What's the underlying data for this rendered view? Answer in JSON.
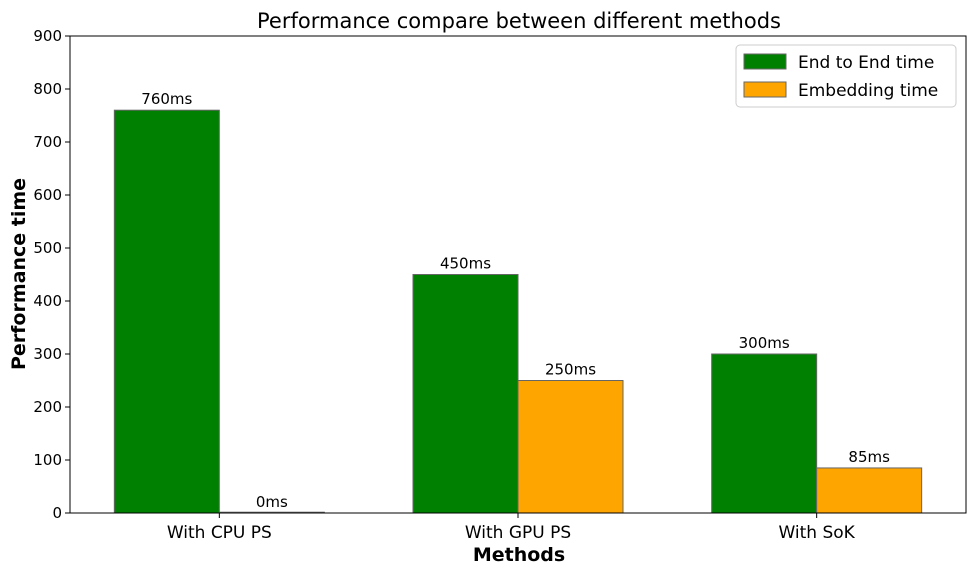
{
  "chart_data": {
    "type": "bar",
    "title": "Performance compare between different methods",
    "xlabel": "Methods",
    "ylabel": "Performance time",
    "categories": [
      "With CPU PS",
      "With GPU PS",
      "With SoK"
    ],
    "series": [
      {
        "name": "End to End time",
        "values": [
          760,
          450,
          300
        ],
        "labels": [
          "760ms",
          "450ms",
          "300ms"
        ],
        "color": "#008000"
      },
      {
        "name": "Embedding time",
        "values": [
          0,
          250,
          85
        ],
        "labels": [
          "0ms",
          "250ms",
          "85ms"
        ],
        "color": "#FFA500"
      }
    ],
    "ylim": [
      0,
      900
    ],
    "yticks": [
      0,
      100,
      200,
      300,
      400,
      500,
      600,
      700,
      800,
      900
    ],
    "grid": false,
    "legend_position": "top-right"
  }
}
